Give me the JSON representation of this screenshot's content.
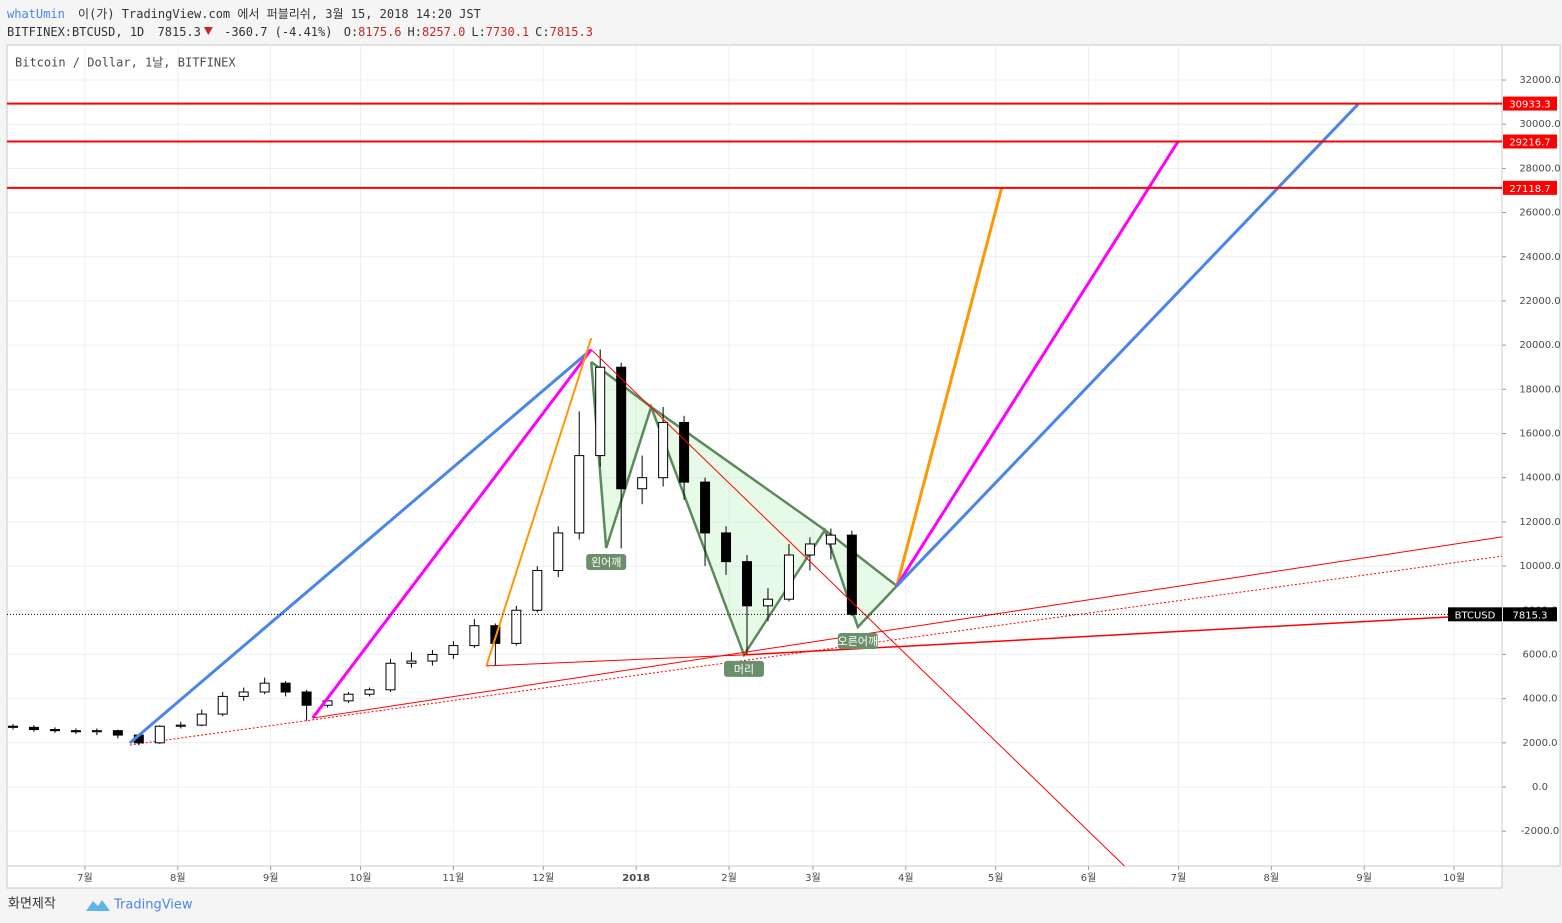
{
  "header": {
    "publisher": "whatUmin",
    "published": "이(가) TradingView.com 에서 퍼블리쉬, 3월 15, 2018 14:20 JST",
    "symbol": "BITFINEX:BTCUSD, 1D",
    "last": "7815.3",
    "change": "-360.7 (-4.41%)",
    "ohlc": [
      {
        "label": "O:",
        "value": "8175.6"
      },
      {
        "label": "H:",
        "value": "8257.0"
      },
      {
        "label": "L:",
        "value": "7730.1"
      },
      {
        "label": "C:",
        "value": "7815.3"
      }
    ]
  },
  "chart_data": {
    "type": "candlestick",
    "title": "Bitcoin / Dollar, 1날, BITFINEX",
    "x": [
      -208,
      -201,
      -194,
      -187,
      -180,
      -173,
      -166,
      -159,
      -152,
      -145,
      -138,
      -131,
      -124,
      -117,
      -110,
      -103,
      -96,
      -89,
      -82,
      -75,
      -68,
      -61,
      -54,
      -47,
      -40,
      -33,
      -26,
      -19,
      -12,
      -5,
      2,
      9,
      16,
      23,
      30,
      37,
      44,
      51,
      58,
      65,
      72
    ],
    "open": [
      2750,
      2700,
      2600,
      2550,
      2500,
      2550,
      2350,
      2000,
      2750,
      2800,
      3300,
      4100,
      4300,
      4700,
      4300,
      3700,
      3900,
      4200,
      4400,
      5600,
      5700,
      6000,
      6400,
      7300,
      6500,
      8000,
      9800,
      11500,
      15000,
      19000,
      13500,
      14000,
      16500,
      13800,
      11500,
      10200,
      8200,
      8500,
      10500,
      11000,
      11400
    ],
    "high": [
      2850,
      2800,
      2700,
      2650,
      2650,
      2600,
      2400,
      2800,
      2950,
      3500,
      4300,
      4500,
      4950,
      4800,
      4400,
      4000,
      4300,
      4500,
      5800,
      6100,
      6200,
      6600,
      7600,
      7400,
      8200,
      10000,
      11800,
      17000,
      19800,
      19200,
      15000,
      17200,
      16800,
      14000,
      11800,
      10500,
      9000,
      11000,
      11300,
      11700,
      11600
    ],
    "low": [
      2600,
      2500,
      2450,
      2400,
      2350,
      2200,
      1900,
      1950,
      2650,
      2750,
      3200,
      3900,
      4200,
      4100,
      3000,
      3600,
      3800,
      4100,
      4300,
      5400,
      5500,
      5800,
      6300,
      5500,
      6400,
      7900,
      9500,
      11200,
      14500,
      10800,
      12800,
      13600,
      13000,
      10000,
      9600,
      6000,
      7500,
      8400,
      9800,
      10300,
      7730
    ],
    "close": [
      2700,
      2600,
      2550,
      2500,
      2550,
      2350,
      2000,
      2750,
      2800,
      3300,
      4100,
      4300,
      4700,
      4300,
      3700,
      3900,
      4200,
      4400,
      5600,
      5700,
      6000,
      6400,
      7300,
      6500,
      8000,
      9800,
      11500,
      15000,
      19000,
      13500,
      14000,
      16500,
      13800,
      11500,
      10200,
      8200,
      8500,
      10500,
      11000,
      11400,
      7815.3
    ],
    "candle_colors": {
      "up": "#ffffff",
      "down": "#000000",
      "border": "#000000"
    },
    "xlim": [
      -210,
      289
    ],
    "xticks": [
      {
        "value": -184,
        "label": "7월"
      },
      {
        "value": -153,
        "label": "8월"
      },
      {
        "value": -122,
        "label": "9월"
      },
      {
        "value": -92,
        "label": "10월"
      },
      {
        "value": -61,
        "label": "11월"
      },
      {
        "value": -31,
        "label": "12월"
      },
      {
        "value": 0,
        "label": "2018"
      },
      {
        "value": 31,
        "label": "2월"
      },
      {
        "value": 59,
        "label": "3월"
      },
      {
        "value": 90,
        "label": "4월"
      },
      {
        "value": 120,
        "label": "5월"
      },
      {
        "value": 151,
        "label": "6월"
      },
      {
        "value": 181,
        "label": "7월"
      },
      {
        "value": 212,
        "label": "8월"
      },
      {
        "value": 243,
        "label": "9월"
      },
      {
        "value": 273,
        "label": "10월"
      }
    ],
    "ylim": [
      -3576,
      33585
    ],
    "yticks": [
      {
        "value": -2000,
        "label": "-2000.0"
      },
      {
        "value": 0,
        "label": "0.0"
      },
      {
        "value": 2000,
        "label": "2000.0"
      },
      {
        "value": 4000,
        "label": "4000.0"
      },
      {
        "value": 6000,
        "label": "6000.0"
      },
      {
        "value": 8000,
        "label": "8000.0"
      },
      {
        "value": 10000,
        "label": "10000.0"
      },
      {
        "value": 12000,
        "label": "12000.0"
      },
      {
        "value": 14000,
        "label": "14000.0"
      },
      {
        "value": 16000,
        "label": "16000.0"
      },
      {
        "value": 18000,
        "label": "18000.0"
      },
      {
        "value": 20000,
        "label": "20000.0"
      },
      {
        "value": 22000,
        "label": "22000.0"
      },
      {
        "value": 24000,
        "label": "24000.0"
      },
      {
        "value": 26000,
        "label": "26000.0"
      },
      {
        "value": 28000,
        "label": "28000.0"
      },
      {
        "value": 30000,
        "label": "30000.0"
      },
      {
        "value": 32000,
        "label": "32000.0"
      }
    ],
    "grid": true,
    "last_price": {
      "name": "BTCUSD",
      "value": 7815.3
    },
    "horizontal_lines": [
      {
        "value": 30933.3,
        "color": "#ff0000"
      },
      {
        "value": 29216.7,
        "color": "#ff0000"
      },
      {
        "value": 27118.7,
        "color": "#ff0000"
      }
    ],
    "trend_lines": [
      {
        "points": [
          [
            -169,
            1990
          ],
          [
            -15,
            19800
          ]
        ],
        "color": "#4a86e8",
        "width": 3
      },
      {
        "points": [
          [
            -108,
            3120
          ],
          [
            -15,
            19800
          ]
        ],
        "color": "#ff00ff",
        "width": 3
      },
      {
        "points": [
          [
            -50,
            5480
          ],
          [
            -15,
            20320
          ]
        ],
        "color": "#ff9800",
        "width": 2
      },
      {
        "points": [
          [
            -15,
            19800
          ],
          [
            163,
            -3580
          ]
        ],
        "color": "#ff0000",
        "width": 1
      },
      {
        "points": [
          [
            -50,
            5480
          ],
          [
            36,
            5980
          ]
        ],
        "color": "#ff0000",
        "width": 1
      },
      {
        "points": [
          [
            -108,
            3120
          ],
          [
            289,
            11320
          ]
        ],
        "color": "#ff0000",
        "width": 1
      },
      {
        "points": [
          [
            36,
            5980
          ],
          [
            272,
            7700
          ]
        ],
        "color": "#ff0000",
        "width": 1.5
      },
      {
        "points": [
          [
            87,
            9100
          ],
          [
            122,
            27120
          ]
        ],
        "color": "#ff9800",
        "width": 3
      },
      {
        "points": [
          [
            87,
            9100
          ],
          [
            181,
            29240
          ]
        ],
        "color": "#ff00ff",
        "width": 3
      },
      {
        "points": [
          [
            87,
            9100
          ],
          [
            241,
            30910
          ]
        ],
        "color": "#4a86e8",
        "width": 3
      }
    ],
    "dotted_lines": [
      {
        "points": [
          [
            -169,
            1900
          ],
          [
            289,
            10450
          ]
        ],
        "color": "#ff0000"
      }
    ],
    "pattern": {
      "color": "#5b8a5b",
      "fill": "#b9f0b9",
      "points": [
        [
          -15,
          19240
        ],
        [
          -10,
          10820
        ],
        [
          5,
          17200
        ],
        [
          36,
          5980
        ],
        [
          63,
          11630
        ],
        [
          74,
          7240
        ],
        [
          87,
          9100
        ]
      ],
      "labels": [
        "왼어깨",
        "머리",
        "오른어깨"
      ]
    }
  },
  "footer": {
    "snapshot": "화면제작",
    "brand": "TradingView"
  }
}
